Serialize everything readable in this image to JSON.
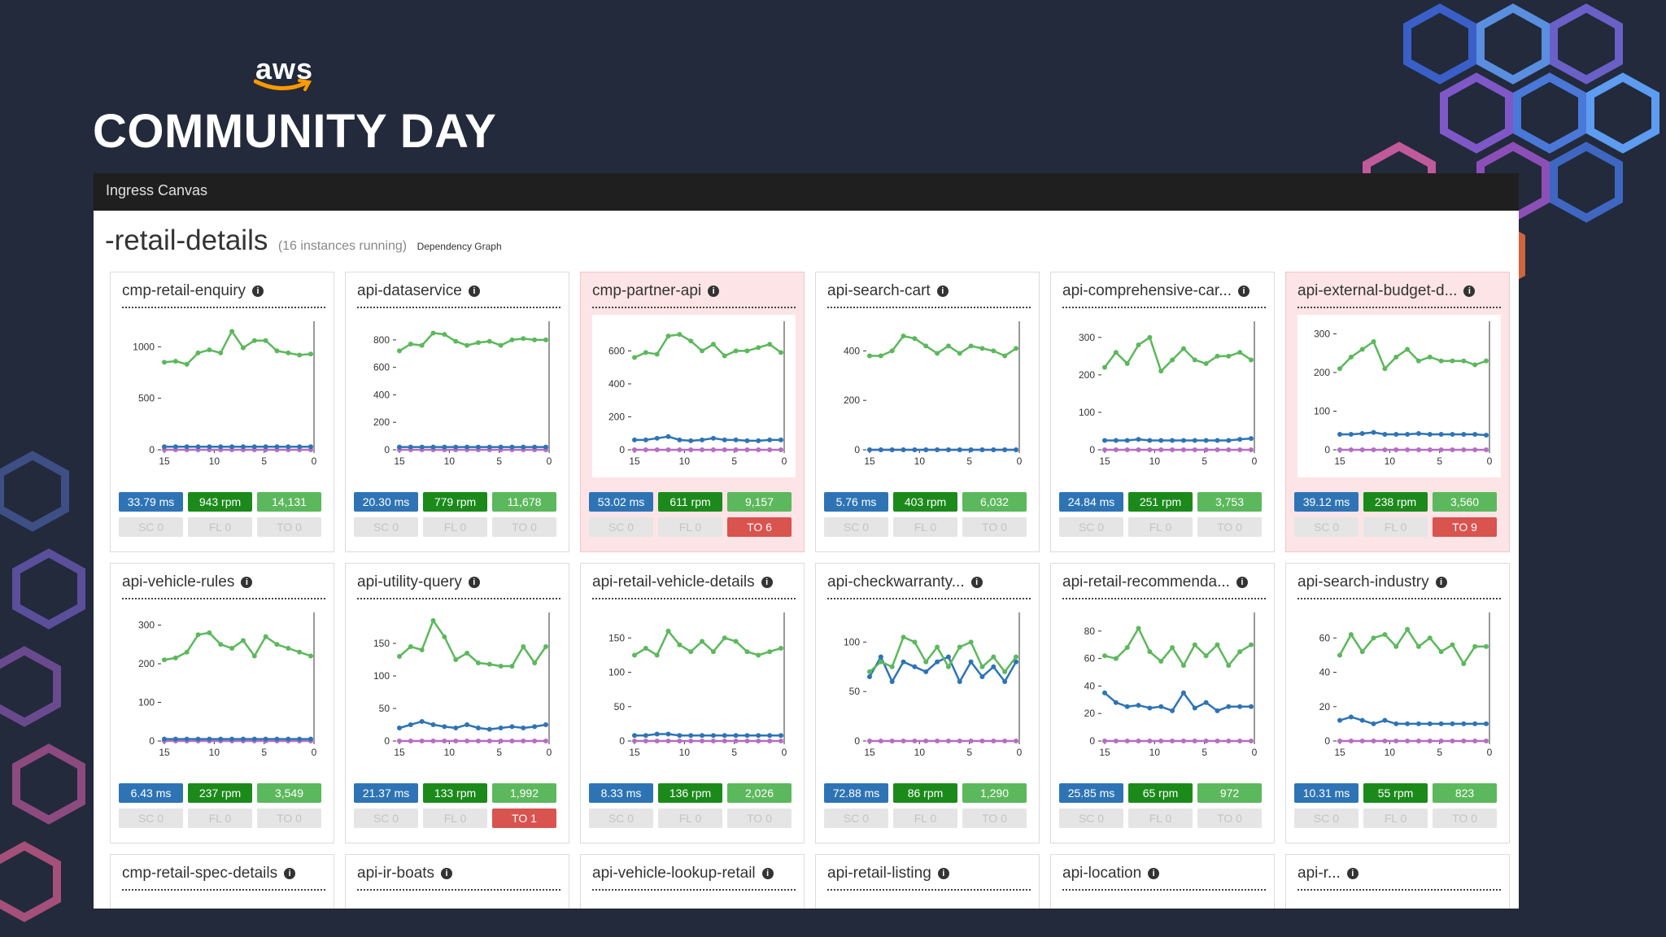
{
  "slide": {
    "brand": "aws",
    "event_title": "COMMUNITY DAY"
  },
  "app": {
    "window_title": "Ingress Canvas",
    "service_name_visible": "-retail-details",
    "instances_text": "(16 instances running)",
    "dependency_link": "Dependency Graph"
  },
  "colors": {
    "latency": "#2e74b5",
    "rpm": "#1b8a1b",
    "count": "#5cb85c",
    "inactive": "#e5e5e5",
    "timeout_alert": "#d9534f",
    "line_requests": "#5cb85c",
    "line_latency": "#2e74b5",
    "line_errors": "#b56ec2"
  },
  "cards": [
    {
      "title": "cmp-retail-enquiry",
      "alert": false,
      "latency": "33.79 ms",
      "rpm": "943 rpm",
      "count": "14,131",
      "sc": "SC 0",
      "fl": "FL 0",
      "to": "TO 0",
      "to_active": false,
      "chart": {
        "ymax": 1200,
        "yticks": [
          0,
          500,
          1000
        ],
        "xticks": [
          "15",
          "10",
          "5",
          "0"
        ],
        "green": [
          850,
          860,
          830,
          940,
          970,
          940,
          1150,
          990,
          1060,
          1060,
          960,
          940,
          920,
          930
        ],
        "blue": [
          30,
          30,
          30,
          30,
          30,
          30,
          30,
          30,
          30,
          30,
          30,
          30,
          30,
          30
        ],
        "purple": [
          0,
          0,
          0,
          0,
          0,
          0,
          0,
          0,
          0,
          0,
          0,
          0,
          0,
          0
        ]
      }
    },
    {
      "title": "api-dataservice",
      "alert": false,
      "latency": "20.30 ms",
      "rpm": "779 rpm",
      "count": "11,678",
      "sc": "SC 0",
      "fl": "FL 0",
      "to": "TO 0",
      "to_active": false,
      "chart": {
        "ymax": 900,
        "yticks": [
          0,
          200,
          400,
          600,
          800
        ],
        "xticks": [
          "15",
          "10",
          "5",
          "0"
        ],
        "green": [
          720,
          770,
          760,
          850,
          840,
          790,
          760,
          780,
          790,
          760,
          800,
          810,
          800,
          800
        ],
        "blue": [
          20,
          20,
          20,
          20,
          20,
          20,
          20,
          20,
          20,
          20,
          20,
          20,
          20,
          20
        ],
        "purple": [
          0,
          0,
          0,
          0,
          0,
          0,
          0,
          0,
          0,
          0,
          0,
          0,
          0,
          0
        ]
      }
    },
    {
      "title": "cmp-partner-api",
      "alert": true,
      "latency": "53.02 ms",
      "rpm": "611 rpm",
      "count": "9,157",
      "sc": "SC 0",
      "fl": "FL 0",
      "to": "TO 6",
      "to_active": true,
      "chart": {
        "ymax": 750,
        "yticks": [
          0,
          200,
          400,
          600
        ],
        "xticks": [
          "15",
          "10",
          "5",
          "0"
        ],
        "green": [
          560,
          590,
          580,
          690,
          700,
          660,
          600,
          640,
          570,
          600,
          600,
          620,
          640,
          590
        ],
        "blue": [
          60,
          60,
          70,
          80,
          60,
          55,
          60,
          70,
          60,
          60,
          55,
          55,
          60,
          60
        ],
        "purple": [
          0,
          0,
          0,
          0,
          0,
          0,
          0,
          0,
          0,
          0,
          0,
          0,
          0,
          0
        ]
      }
    },
    {
      "title": "api-search-cart",
      "alert": false,
      "latency": "5.76 ms",
      "rpm": "403 rpm",
      "count": "6,032",
      "sc": "SC 0",
      "fl": "FL 0",
      "to": "TO 0",
      "to_active": false,
      "chart": {
        "ymax": 500,
        "yticks": [
          0,
          200,
          400
        ],
        "xticks": [
          "15",
          "10",
          "5",
          "0"
        ],
        "green": [
          380,
          380,
          400,
          460,
          450,
          420,
          390,
          420,
          390,
          420,
          410,
          400,
          380,
          410
        ],
        "blue": [
          0,
          0,
          0,
          0,
          0,
          0,
          0,
          0,
          0,
          0,
          0,
          0,
          0,
          0
        ],
        "purple": [
          0,
          0,
          0,
          0,
          0,
          0,
          0,
          0,
          0,
          0,
          0,
          0,
          0,
          0
        ]
      }
    },
    {
      "title": "api-comprehensive-car...",
      "alert": false,
      "latency": "24.84 ms",
      "rpm": "251 rpm",
      "count": "3,753",
      "sc": "SC 0",
      "fl": "FL 0",
      "to": "TO 0",
      "to_active": false,
      "chart": {
        "ymax": 330,
        "yticks": [
          0,
          100,
          200,
          300
        ],
        "xticks": [
          "15",
          "10",
          "5",
          "0"
        ],
        "green": [
          220,
          260,
          230,
          280,
          300,
          210,
          240,
          270,
          240,
          230,
          250,
          250,
          260,
          240
        ],
        "blue": [
          25,
          25,
          25,
          28,
          25,
          25,
          25,
          25,
          25,
          25,
          25,
          25,
          28,
          30
        ],
        "purple": [
          0,
          0,
          0,
          0,
          0,
          0,
          0,
          0,
          0,
          0,
          0,
          0,
          0,
          0
        ]
      }
    },
    {
      "title": "api-external-budget-d...",
      "alert": true,
      "latency": "39.12 ms",
      "rpm": "238 rpm",
      "count": "3,560",
      "sc": "SC 0",
      "fl": "FL 0",
      "to": "TO 9",
      "to_active": true,
      "chart": {
        "ymax": 320,
        "yticks": [
          0,
          100,
          200,
          300
        ],
        "xticks": [
          "15",
          "10",
          "5",
          "0"
        ],
        "green": [
          210,
          240,
          260,
          280,
          210,
          240,
          260,
          230,
          240,
          230,
          230,
          230,
          220,
          230
        ],
        "blue": [
          40,
          40,
          42,
          45,
          40,
          40,
          40,
          42,
          40,
          40,
          40,
          40,
          40,
          38
        ],
        "purple": [
          0,
          0,
          0,
          0,
          0,
          0,
          0,
          0,
          0,
          0,
          0,
          0,
          0,
          0
        ]
      }
    },
    {
      "title": "api-vehicle-rules",
      "alert": false,
      "latency": "6.43 ms",
      "rpm": "237 rpm",
      "count": "3,549",
      "sc": "SC 0",
      "fl": "FL 0",
      "to": "TO 0",
      "to_active": false,
      "chart": {
        "ymax": 320,
        "yticks": [
          0,
          100,
          200,
          300
        ],
        "xticks": [
          "15",
          "10",
          "5",
          "0"
        ],
        "green": [
          210,
          215,
          230,
          275,
          280,
          250,
          240,
          260,
          220,
          270,
          250,
          240,
          230,
          220
        ],
        "blue": [
          5,
          5,
          5,
          5,
          5,
          5,
          5,
          5,
          5,
          5,
          5,
          5,
          5,
          5
        ],
        "purple": [
          0,
          0,
          0,
          0,
          0,
          0,
          0,
          0,
          0,
          0,
          0,
          0,
          0,
          0
        ]
      }
    },
    {
      "title": "api-utility-query",
      "alert": false,
      "latency": "21.37 ms",
      "rpm": "133 rpm",
      "count": "1,992",
      "sc": "SC 0",
      "fl": "FL 0",
      "to": "TO 1",
      "to_active": true,
      "chart": {
        "ymax": 190,
        "yticks": [
          0,
          50,
          100,
          150
        ],
        "xticks": [
          "15",
          "10",
          "5",
          "0"
        ],
        "green": [
          130,
          145,
          140,
          185,
          160,
          125,
          135,
          120,
          118,
          115,
          115,
          145,
          120,
          145
        ],
        "blue": [
          20,
          25,
          30,
          25,
          22,
          20,
          25,
          20,
          18,
          20,
          22,
          20,
          22,
          25
        ],
        "purple": [
          0,
          0,
          0,
          0,
          0,
          0,
          0,
          0,
          0,
          0,
          0,
          0,
          0,
          0
        ]
      }
    },
    {
      "title": "api-retail-vehicle-details",
      "alert": false,
      "latency": "8.33 ms",
      "rpm": "136 rpm",
      "count": "2,026",
      "sc": "SC 0",
      "fl": "FL 0",
      "to": "TO 0",
      "to_active": false,
      "chart": {
        "ymax": 180,
        "yticks": [
          0,
          50,
          100,
          150
        ],
        "xticks": [
          "15",
          "10",
          "5",
          "0"
        ],
        "green": [
          125,
          135,
          125,
          160,
          140,
          130,
          145,
          130,
          150,
          145,
          130,
          125,
          130,
          135
        ],
        "blue": [
          8,
          8,
          10,
          10,
          8,
          8,
          8,
          8,
          8,
          8,
          8,
          8,
          8,
          8
        ],
        "purple": [
          0,
          0,
          0,
          0,
          0,
          0,
          0,
          0,
          0,
          0,
          0,
          0,
          0,
          0
        ]
      }
    },
    {
      "title": "api-checkwarranty...",
      "alert": false,
      "latency": "72.88 ms",
      "rpm": "86 rpm",
      "count": "1,290",
      "sc": "SC 0",
      "fl": "FL 0",
      "to": "TO 0",
      "to_active": false,
      "chart": {
        "ymax": 125,
        "yticks": [
          0,
          50,
          100
        ],
        "xticks": [
          "15",
          "10",
          "5",
          "0"
        ],
        "green": [
          70,
          80,
          75,
          105,
          100,
          80,
          95,
          75,
          95,
          100,
          75,
          85,
          70,
          85
        ],
        "blue": [
          65,
          85,
          60,
          80,
          75,
          70,
          80,
          85,
          60,
          80,
          65,
          75,
          60,
          80
        ],
        "purple": [
          0,
          0,
          0,
          0,
          0,
          0,
          0,
          0,
          0,
          0,
          0,
          0,
          0,
          0
        ]
      }
    },
    {
      "title": "api-retail-recommenda...",
      "alert": false,
      "latency": "25.85 ms",
      "rpm": "65 rpm",
      "count": "972",
      "sc": "SC 0",
      "fl": "FL 0",
      "to": "TO 0",
      "to_active": false,
      "chart": {
        "ymax": 90,
        "yticks": [
          0,
          20,
          40,
          60,
          80
        ],
        "xticks": [
          "15",
          "10",
          "5",
          "0"
        ],
        "green": [
          62,
          60,
          68,
          82,
          65,
          58,
          68,
          55,
          70,
          62,
          70,
          55,
          65,
          70
        ],
        "blue": [
          35,
          28,
          25,
          26,
          24,
          25,
          22,
          35,
          24,
          28,
          22,
          25,
          25,
          25
        ],
        "purple": [
          0,
          0,
          0,
          0,
          0,
          0,
          0,
          0,
          0,
          0,
          0,
          0,
          0,
          0
        ]
      }
    },
    {
      "title": "api-search-industry",
      "alert": false,
      "latency": "10.31 ms",
      "rpm": "55 rpm",
      "count": "823",
      "sc": "SC 0",
      "fl": "FL 0",
      "to": "TO 0",
      "to_active": false,
      "chart": {
        "ymax": 72,
        "yticks": [
          0,
          20,
          40,
          60
        ],
        "xticks": [
          "15",
          "10",
          "5",
          "0"
        ],
        "green": [
          50,
          62,
          52,
          60,
          62,
          55,
          65,
          55,
          60,
          52,
          56,
          45,
          55,
          55
        ],
        "blue": [
          12,
          14,
          12,
          10,
          12,
          10,
          10,
          10,
          10,
          10,
          10,
          10,
          10,
          10
        ],
        "purple": [
          0,
          0,
          0,
          0,
          0,
          0,
          0,
          0,
          0,
          0,
          0,
          0,
          0,
          0
        ]
      }
    },
    {
      "title": "cmp-retail-spec-details",
      "partial": true
    },
    {
      "title": "api-ir-boats",
      "partial": true
    },
    {
      "title": "api-vehicle-lookup-retail",
      "partial": true
    },
    {
      "title": "api-retail-listing",
      "partial": true
    },
    {
      "title": "api-location",
      "partial": true
    },
    {
      "title": "api-r...",
      "partial": true
    }
  ]
}
